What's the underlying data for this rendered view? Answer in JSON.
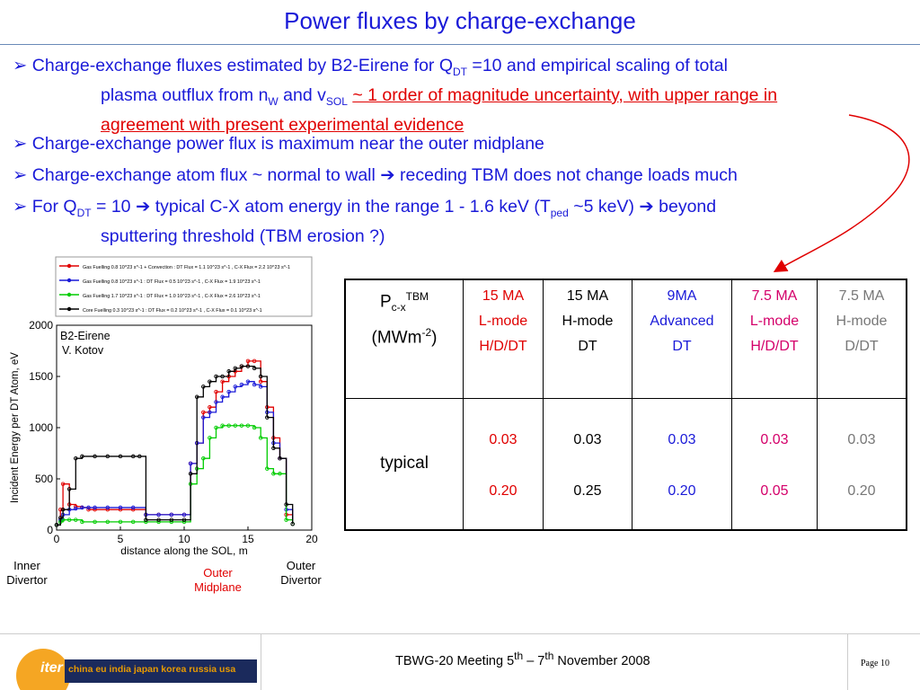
{
  "title": "Power fluxes by charge-exchange",
  "bullets": {
    "b1": {
      "line1_a": "Charge-exchange fluxes estimated by B2-Eirene for Q",
      "line1_sub": "DT",
      "line1_b": " =10 and empirical scaling of total",
      "line2_a": "plasma outflux from n",
      "line2_sub1": "W",
      "line2_b": " and v",
      "line2_sub2": "SOL",
      "line2_red": "~ 1 order of magnitude uncertainty, with upper range in",
      "line3_red": "agreement with present experimental evidence"
    },
    "b2": "Charge-exchange power flux is maximum near the outer midplane",
    "b3_a": "Charge-exchange atom flux ~ normal to wall",
    "b3_b": " receding TBM does not change loads much",
    "b4": {
      "a": "For Q",
      "sub": "DT",
      "b": " = 10 ",
      "c": " typical C-X atom energy in the range 1 - 1.6 keV (T",
      "sub2": "ped",
      "d": " ~5 keV) ",
      "e": " beyond",
      "line2": "sputtering threshold (TBM erosion ?)"
    }
  },
  "table": {
    "header_label": "P",
    "header_sub": "c-x",
    "header_sup": "TBM",
    "header_unit_a": "(MWm",
    "header_unit_sup": "-2",
    "header_unit_b": ")",
    "row_label": "typical",
    "columns": [
      {
        "l1": "15 MA",
        "l2": "L-mode",
        "l3": "H/D/DT",
        "v1": "0.03",
        "v2": "0.20",
        "color": "#e00000"
      },
      {
        "l1": "15 MA",
        "l2": "H-mode",
        "l3": "DT",
        "v1": "0.03",
        "v2": "0.25",
        "color": "#000000"
      },
      {
        "l1": "9MA",
        "l2": "Advanced",
        "l3": "DT",
        "v1": "0.03",
        "v2": "0.20",
        "color": "#1a1ad8"
      },
      {
        "l1": "7.5 MA",
        "l2": "L-mode",
        "l3": "H/D/DT",
        "v1": "0.03",
        "v2": "0.05",
        "color": "#d4006a"
      },
      {
        "l1": "7.5 MA",
        "l2": "H-mode",
        "l3": "D/DT",
        "v1": "0.03",
        "v2": "0.20",
        "color": "#777777"
      }
    ]
  },
  "chart_data": {
    "type": "line",
    "xlabel": "distance along the SOL, m",
    "ylabel": "Incident Energy per DT Atom, eV",
    "xlim": [
      0,
      20
    ],
    "ylim": [
      0,
      2000
    ],
    "xticks": [
      "0",
      "5",
      "10",
      "15",
      "20"
    ],
    "yticks": [
      "0",
      "500",
      "1000",
      "1500",
      "2000"
    ],
    "annotation": "B2-Eirene",
    "annotation2": "V. Kotov",
    "legend": [
      "Gas Fuelling 0.8 10^23 s^-1 + Convection : DT Flux = 1.1 10^23 s^-1 , C-X Flux = 2.2 10^23 s^-1",
      "Gas Fuelling 0.8 10^23 s^-1 : DT Flux = 0.5 10^23 s^-1 , C-X Flux = 1.9 10^23 s^-1",
      "Gas Fuelling 1.7 10^23 s^-1 : DT Flux = 1.0 10^23 s^-1 , C-X Flux = 2.6 10^23 s^-1",
      "Core Fuelling 0.3 10^23 s^-1 : DT Flux = 0.2 10^23 s^-1 , C-X Flux = 0.1 10^23 s^-1"
    ],
    "series": [
      {
        "color": "#e00000",
        "x": [
          0,
          0.3,
          0.5,
          1,
          1.5,
          2,
          2.5,
          3,
          4,
          5,
          6,
          7,
          8,
          9,
          10,
          10.5,
          11,
          11.5,
          12,
          12.5,
          13,
          13.5,
          14,
          14.5,
          15,
          15.5,
          16,
          16.5,
          17,
          17.5,
          18,
          18.5
        ],
        "y": [
          50,
          200,
          450,
          250,
          230,
          220,
          200,
          200,
          200,
          200,
          200,
          150,
          150,
          150,
          150,
          650,
          850,
          1150,
          1200,
          1350,
          1450,
          1500,
          1550,
          1600,
          1650,
          1650,
          1450,
          1200,
          900,
          700,
          150,
          60
        ]
      },
      {
        "color": "#1a1ad8",
        "x": [
          0,
          0.3,
          0.5,
          1,
          1.5,
          2,
          2.5,
          3,
          4,
          5,
          6,
          7,
          8,
          9,
          10,
          10.5,
          11,
          11.5,
          12,
          12.5,
          13,
          13.5,
          14,
          14.5,
          15,
          15.5,
          16,
          16.5,
          17,
          17.5,
          18,
          18.5
        ],
        "y": [
          50,
          100,
          150,
          200,
          210,
          220,
          220,
          220,
          220,
          220,
          220,
          150,
          150,
          150,
          150,
          650,
          850,
          1100,
          1150,
          1250,
          1300,
          1350,
          1400,
          1420,
          1450,
          1420,
          1400,
          1150,
          850,
          700,
          200,
          60
        ]
      },
      {
        "color": "#00cc00",
        "x": [
          0,
          0.3,
          0.5,
          1,
          1.5,
          2,
          3,
          4,
          5,
          6,
          7,
          8,
          9,
          10,
          10.5,
          11,
          11.5,
          12,
          12.5,
          13,
          13.5,
          14,
          14.5,
          15,
          15.5,
          16,
          16.5,
          17,
          17.5,
          18,
          18.5
        ],
        "y": [
          50,
          80,
          100,
          100,
          100,
          80,
          80,
          80,
          80,
          80,
          80,
          80,
          80,
          80,
          450,
          600,
          700,
          900,
          1000,
          1020,
          1020,
          1020,
          1020,
          1020,
          1000,
          900,
          600,
          550,
          550,
          100,
          60
        ]
      },
      {
        "color": "#000000",
        "x": [
          0,
          0.3,
          0.5,
          1,
          1.5,
          2,
          3,
          4,
          5,
          6,
          6.5,
          7,
          8,
          9,
          10,
          10.5,
          11,
          11.5,
          12,
          12.5,
          13,
          13.5,
          14,
          14.5,
          15,
          15.5,
          16,
          16.5,
          17,
          17.5,
          18,
          18.5
        ],
        "y": [
          50,
          120,
          200,
          400,
          700,
          720,
          720,
          720,
          720,
          720,
          720,
          100,
          100,
          100,
          100,
          550,
          1300,
          1400,
          1450,
          1500,
          1500,
          1550,
          1580,
          1600,
          1600,
          1580,
          1500,
          1100,
          800,
          700,
          250,
          60
        ]
      }
    ]
  },
  "chart_labels": {
    "inner": "Inner",
    "inner2": "Divertor",
    "outer_mid": "Outer",
    "outer_mid2": "Midplane",
    "outer_div": "Outer",
    "outer_div2": "Divertor"
  },
  "footer": {
    "meeting_a": "TBWG-20 Meeting 5",
    "sup1": "th",
    "meeting_b": " – 7",
    "sup2": "th",
    "meeting_c": " November 2008",
    "page": "Page 10",
    "logo": "iter",
    "logo_partners": "china eu india japan korea russia usa"
  },
  "colors": {
    "title": "#1a1ad8",
    "red": "#e00000",
    "arrow": "#e00000",
    "logo": "#f5a623"
  }
}
